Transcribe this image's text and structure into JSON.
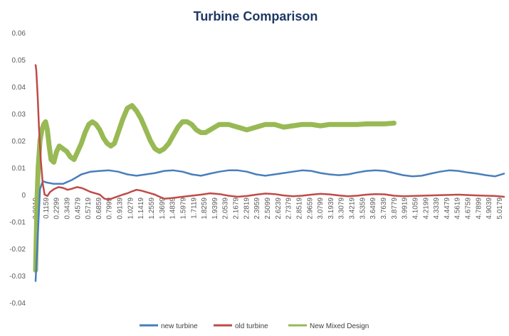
{
  "chart_data": {
    "type": "line",
    "title": "Turbine Comparison",
    "xlabel": "",
    "ylabel": "",
    "ylim": [
      -0.04,
      0.06
    ],
    "yticks": [
      "0.06",
      "0.05",
      "0.04",
      "0.03",
      "0.02",
      "0.01",
      "0",
      "-0.01",
      "-0.02",
      "-0.03",
      "-0.04"
    ],
    "ytick_values": [
      0.06,
      0.05,
      0.04,
      0.03,
      0.02,
      0.01,
      0,
      -0.01,
      -0.02,
      -0.03,
      -0.04
    ],
    "xlim": [
      0.0019,
      5.0959
    ],
    "xticks": [
      "0.0019",
      "0.1159",
      "0.2299",
      "0.3439",
      "0.4579",
      "0.5719",
      "0.6859",
      "0.7999",
      "0.9139",
      "1.0279",
      "1.1419",
      "1.2559",
      "1.3699",
      "1.4839",
      "1.5979",
      "1.7119",
      "1.8259",
      "1.9399",
      "2.0539",
      "2.1679",
      "2.2819",
      "2.3959",
      "2.5099",
      "2.6239",
      "2.7379",
      "2.8519",
      "2.9659",
      "3.0799",
      "3.1939",
      "3.3079",
      "3.4219",
      "3.5359",
      "3.6499",
      "3.7639",
      "3.8779",
      "3.9919",
      "4.1059",
      "4.2199",
      "4.3339",
      "4.4479",
      "4.5619",
      "4.6759",
      "4.7899",
      "4.9039",
      "5.0179"
    ],
    "legend_position": "bottom",
    "grid": false,
    "series": [
      {
        "name": "new turbine",
        "color": "#4a7ebb",
        "x": [
          0.0019,
          0.05,
          0.08,
          0.12,
          0.2,
          0.3,
          0.4,
          0.5,
          0.6,
          0.7,
          0.8,
          0.9,
          1.0,
          1.1,
          1.2,
          1.3,
          1.4,
          1.5,
          1.6,
          1.7,
          1.8,
          1.9,
          2.0,
          2.1,
          2.2,
          2.3,
          2.4,
          2.5,
          2.6,
          2.7,
          2.8,
          2.9,
          3.0,
          3.1,
          3.2,
          3.3,
          3.4,
          3.5,
          3.6,
          3.7,
          3.8,
          3.9,
          4.0,
          4.1,
          4.2,
          4.3,
          4.4,
          4.5,
          4.6,
          4.7,
          4.8,
          4.9,
          5.0,
          5.0959
        ],
        "values": [
          -0.032,
          0.002,
          0.005,
          0.0045,
          0.004,
          0.004,
          0.0055,
          0.0075,
          0.0085,
          0.0088,
          0.009,
          0.0085,
          0.0075,
          0.007,
          0.0075,
          0.008,
          0.0088,
          0.009,
          0.0085,
          0.0075,
          0.007,
          0.0078,
          0.0085,
          0.009,
          0.009,
          0.0085,
          0.0075,
          0.007,
          0.0075,
          0.008,
          0.0085,
          0.009,
          0.0088,
          0.008,
          0.0075,
          0.0072,
          0.0075,
          0.0082,
          0.0088,
          0.009,
          0.0088,
          0.008,
          0.0072,
          0.0068,
          0.007,
          0.0078,
          0.0085,
          0.009,
          0.0088,
          0.0082,
          0.0078,
          0.0072,
          0.0068,
          0.0078
        ]
      },
      {
        "name": "old turbine",
        "color": "#be4b48",
        "x": [
          0.0019,
          0.01,
          0.025,
          0.04,
          0.06,
          0.08,
          0.1,
          0.13,
          0.16,
          0.2,
          0.25,
          0.3,
          0.35,
          0.4,
          0.45,
          0.5,
          0.55,
          0.6,
          0.65,
          0.7,
          0.75,
          0.8,
          0.85,
          0.9,
          0.95,
          1.0,
          1.05,
          1.1,
          1.15,
          1.2,
          1.25,
          1.3,
          1.35,
          1.4,
          1.5,
          1.6,
          1.7,
          1.8,
          1.9,
          2.0,
          2.1,
          2.2,
          2.3,
          2.4,
          2.5,
          2.6,
          2.7,
          2.8,
          2.9,
          3.0,
          3.1,
          3.2,
          3.3,
          3.4,
          3.5,
          3.6,
          3.7,
          3.8,
          3.9,
          4.0,
          4.2,
          4.4,
          4.6,
          4.8,
          5.0,
          5.0959
        ],
        "values": [
          0.048,
          0.046,
          0.036,
          0.024,
          0.012,
          0.004,
          0.0,
          -0.0005,
          0.001,
          0.002,
          0.0028,
          0.0025,
          0.0018,
          0.0022,
          0.0028,
          0.0025,
          0.0018,
          0.001,
          0.0005,
          0.0,
          -0.0015,
          -0.0018,
          -0.0012,
          -0.0006,
          0.0,
          0.0005,
          0.0012,
          0.0018,
          0.0015,
          0.001,
          0.0005,
          0.0,
          -0.0008,
          -0.0015,
          -0.0012,
          -0.0008,
          -0.0004,
          0.0,
          0.0005,
          0.0002,
          -0.0004,
          -0.0008,
          -0.0005,
          0.0,
          0.0004,
          0.0002,
          -0.0003,
          -0.0006,
          -0.0004,
          0.0,
          0.0003,
          0.0001,
          -0.0003,
          -0.0006,
          -0.0004,
          0.0,
          0.0002,
          0.0001,
          -0.0004,
          -0.0006,
          -0.0004,
          -0.0002,
          0.0,
          -0.0003,
          -0.0005,
          -0.0008
        ]
      },
      {
        "name": "New Mixed Design",
        "color": "#98b954",
        "x": [
          0.0019,
          0.01,
          0.02,
          0.03,
          0.05,
          0.07,
          0.09,
          0.11,
          0.13,
          0.15,
          0.17,
          0.2,
          0.23,
          0.26,
          0.3,
          0.34,
          0.38,
          0.42,
          0.46,
          0.5,
          0.54,
          0.58,
          0.62,
          0.66,
          0.7,
          0.74,
          0.78,
          0.82,
          0.86,
          0.9,
          0.95,
          1.0,
          1.05,
          1.1,
          1.15,
          1.2,
          1.25,
          1.3,
          1.35,
          1.4,
          1.45,
          1.5,
          1.55,
          1.6,
          1.65,
          1.7,
          1.75,
          1.8,
          1.85,
          1.9,
          1.95,
          2.0,
          2.05,
          2.1,
          2.2,
          2.3,
          2.4,
          2.5,
          2.6,
          2.7,
          2.8,
          2.9,
          3.0,
          3.1,
          3.2,
          3.3,
          3.4,
          3.5,
          3.6,
          3.7,
          3.8,
          3.9
        ],
        "values": [
          -0.028,
          -0.015,
          0.0,
          0.01,
          0.02,
          0.024,
          0.026,
          0.027,
          0.024,
          0.018,
          0.013,
          0.012,
          0.016,
          0.018,
          0.017,
          0.016,
          0.014,
          0.013,
          0.016,
          0.019,
          0.023,
          0.026,
          0.027,
          0.026,
          0.024,
          0.021,
          0.019,
          0.018,
          0.019,
          0.023,
          0.028,
          0.032,
          0.033,
          0.031,
          0.028,
          0.024,
          0.02,
          0.017,
          0.016,
          0.017,
          0.019,
          0.022,
          0.025,
          0.027,
          0.027,
          0.026,
          0.024,
          0.023,
          0.023,
          0.024,
          0.025,
          0.026,
          0.026,
          0.026,
          0.025,
          0.024,
          0.025,
          0.026,
          0.026,
          0.025,
          0.0255,
          0.026,
          0.026,
          0.0255,
          0.026,
          0.026,
          0.026,
          0.026,
          0.0262,
          0.0262,
          0.0262,
          0.0265
        ]
      }
    ]
  }
}
